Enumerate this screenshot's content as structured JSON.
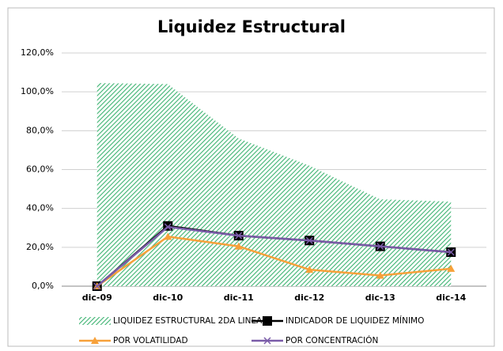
{
  "chart_data": {
    "type": "area-line",
    "title": "Liquidez Estructural",
    "categories": [
      "dic-09",
      "dic-10",
      "dic-11",
      "dic-12",
      "dic-13",
      "dic-14"
    ],
    "series": [
      {
        "name": "LIQUIDEZ ESTRUCTURAL 2DA LINEA",
        "kind": "area",
        "color": "#3cb371",
        "values": [
          104.5,
          104,
          76,
          62,
          44.7,
          43.5
        ]
      },
      {
        "name": "INDICADOR DE LIQUIDEZ MÍNIMO",
        "kind": "line",
        "marker": "square",
        "color": "#000000",
        "values": [
          0,
          31,
          26,
          23.5,
          20.5,
          17.5
        ]
      },
      {
        "name": "POR VOLATILIDAD",
        "kind": "line",
        "marker": "triangle",
        "color": "#f7a13a",
        "values": [
          0,
          25.5,
          20.5,
          8.5,
          5.5,
          9
        ]
      },
      {
        "name": "POR CONCENTRACIÓN",
        "kind": "line",
        "marker": "x",
        "color": "#7a5ca8",
        "values": [
          0,
          30.5,
          26,
          23.5,
          20.5,
          17.5
        ]
      }
    ],
    "ylim": [
      0,
      120
    ],
    "yticks": [
      {
        "value": 0,
        "label": "0,0%"
      },
      {
        "value": 20,
        "label": "20,0%"
      },
      {
        "value": 40,
        "label": "40,0%"
      },
      {
        "value": 60,
        "label": "60,0%"
      },
      {
        "value": 80,
        "label": "80,0%"
      },
      {
        "value": 100,
        "label": "100,0%"
      },
      {
        "value": 120,
        "label": "120,0%"
      }
    ],
    "grid": true
  }
}
